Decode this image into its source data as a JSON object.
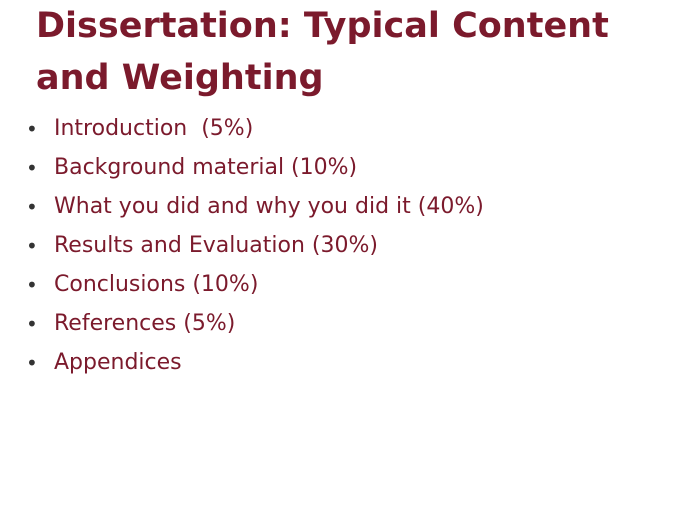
{
  "slide": {
    "title": "Dissertation: Typical Content and Weighting",
    "bullet_symbol": "•",
    "items": [
      "Introduction  (5%)",
      "Background material (10%)",
      "What you did and why you did it (40%)",
      "Results and Evaluation (30%)",
      "Conclusions (10%)",
      "References (5%)",
      "Appendices"
    ],
    "colors": {
      "text": "#7b1a2c",
      "bullet": "#333333",
      "background": "#ffffff"
    }
  }
}
